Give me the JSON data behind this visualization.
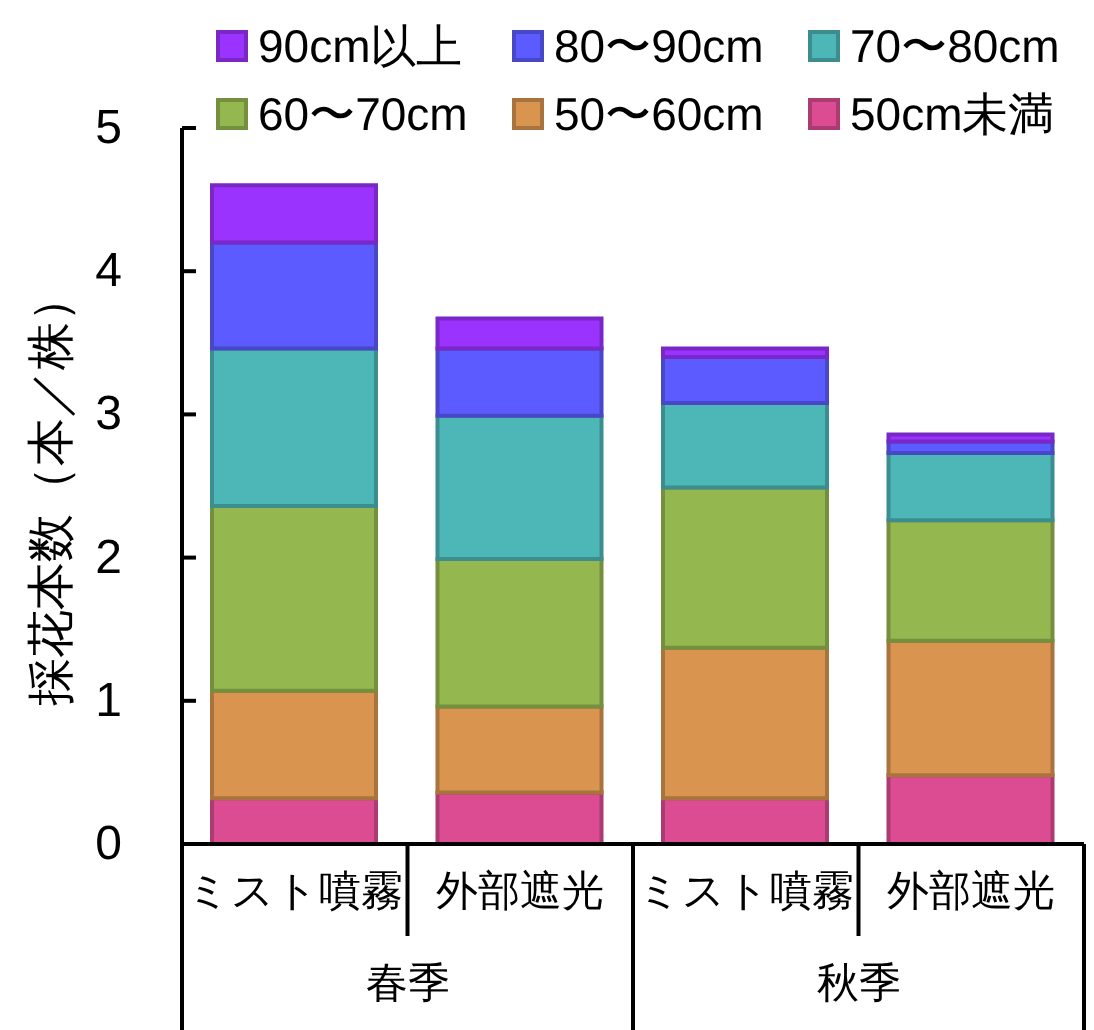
{
  "chart_data": {
    "type": "bar",
    "stacked": true,
    "ylabel": "採花本数（本／株）",
    "categories": [
      "ミスト噴霧",
      "外部遮光",
      "ミスト噴霧",
      "外部遮光"
    ],
    "annotations": [
      "春季",
      "秋季"
    ],
    "series": [
      {
        "name": "50cm未満",
        "color": "#dc4c92",
        "values": [
          0.32,
          0.36,
          0.32,
          0.48
        ]
      },
      {
        "name": "50〜60cm",
        "color": "#d9944f",
        "values": [
          0.75,
          0.6,
          1.05,
          0.94
        ]
      },
      {
        "name": "60〜70cm",
        "color": "#95b74f",
        "values": [
          1.29,
          1.03,
          1.12,
          0.84
        ]
      },
      {
        "name": "70〜80cm",
        "color": "#4db6b6",
        "values": [
          1.1,
          1.0,
          0.59,
          0.47
        ]
      },
      {
        "name": "80〜90cm",
        "color": "#5b5bff",
        "values": [
          0.74,
          0.47,
          0.32,
          0.08
        ]
      },
      {
        "name": "90cm以上",
        "color": "#9b33ff",
        "values": [
          0.4,
          0.21,
          0.06,
          0.05
        ]
      }
    ],
    "ylim": [
      0,
      5
    ],
    "yticks": [
      0,
      1,
      2,
      3,
      4,
      5
    ],
    "legend": "top"
  }
}
